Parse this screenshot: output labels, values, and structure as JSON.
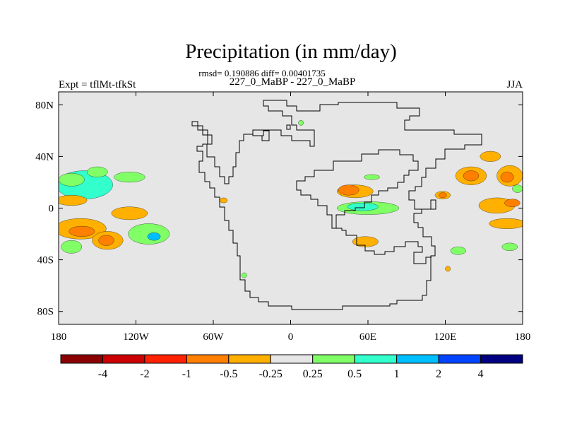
{
  "chart_data": {
    "type": "heatmap",
    "title": "Precipitation (in mm/day)",
    "stats": "rmsd= 0.190886 diff= 0.00401735",
    "subtitle": "227_0_MaBP - 227_0_MaBP",
    "left_label": "Expt = tflMt-tfkSt",
    "right_label": "JJA",
    "x_ticks": [
      {
        "value": -180,
        "label": "180"
      },
      {
        "value": -120,
        "label": "120W"
      },
      {
        "value": -60,
        "label": "60W"
      },
      {
        "value": 0,
        "label": "0"
      },
      {
        "value": 60,
        "label": "60E"
      },
      {
        "value": 120,
        "label": "120E"
      },
      {
        "value": 180,
        "label": "180"
      }
    ],
    "y_ticks": [
      {
        "value": 80,
        "label": "80N"
      },
      {
        "value": 40,
        "label": "40N"
      },
      {
        "value": 0,
        "label": "0"
      },
      {
        "value": -40,
        "label": "40S"
      },
      {
        "value": -80,
        "label": "80S"
      }
    ],
    "xlim": [
      -180,
      180
    ],
    "ylim": [
      -90,
      90
    ],
    "colorbar": {
      "colors": [
        "#8b0000",
        "#cc0000",
        "#ff2200",
        "#ff7f00",
        "#ffb000",
        "#e6e6e6",
        "#80ff66",
        "#33ffcc",
        "#00bfff",
        "#0044ff",
        "#000080"
      ],
      "labels": [
        "-4",
        "-2",
        "-1",
        "-0.5",
        "-0.25",
        "0.25",
        "0.5",
        "1",
        "2",
        "4"
      ]
    },
    "anomalies": [
      {
        "lon": -165,
        "lat": 16,
        "rx": 14,
        "ry": 7,
        "value": 1.5
      },
      {
        "lon": -160,
        "lat": 18,
        "rx": 22,
        "ry": 11,
        "value": 0.6
      },
      {
        "lon": -170,
        "lat": 22,
        "rx": 10,
        "ry": 5,
        "value": 0.3
      },
      {
        "lon": -150,
        "lat": 28,
        "rx": 8,
        "ry": 4,
        "value": 0.3
      },
      {
        "lon": -125,
        "lat": 24,
        "rx": 12,
        "ry": 4,
        "value": 0.3
      },
      {
        "lon": -170,
        "lat": 6,
        "rx": 12,
        "ry": 4,
        "value": -0.3
      },
      {
        "lon": -125,
        "lat": -4,
        "rx": 14,
        "ry": 5,
        "value": -0.3
      },
      {
        "lon": -163,
        "lat": -16,
        "rx": 20,
        "ry": 8,
        "value": -0.3
      },
      {
        "lon": -162,
        "lat": -18,
        "rx": 10,
        "ry": 4,
        "value": -0.6
      },
      {
        "lon": -142,
        "lat": -25,
        "rx": 12,
        "ry": 7,
        "value": -0.3
      },
      {
        "lon": -143,
        "lat": -25,
        "rx": 6,
        "ry": 4,
        "value": -0.6
      },
      {
        "lon": -110,
        "lat": -20,
        "rx": 16,
        "ry": 8,
        "value": 0.3
      },
      {
        "lon": -106,
        "lat": -22,
        "rx": 5,
        "ry": 3,
        "value": 1.0
      },
      {
        "lon": -170,
        "lat": -30,
        "rx": 8,
        "ry": 5,
        "value": 0.3
      },
      {
        "lon": 50,
        "lat": 13,
        "rx": 14,
        "ry": 5,
        "value": -0.3
      },
      {
        "lon": 45,
        "lat": 14,
        "rx": 8,
        "ry": 4,
        "value": -0.6
      },
      {
        "lon": 60,
        "lat": 0,
        "rx": 24,
        "ry": 5,
        "value": 0.3
      },
      {
        "lon": 56,
        "lat": 1,
        "rx": 12,
        "ry": 3,
        "value": 0.6
      },
      {
        "lon": 63,
        "lat": 24,
        "rx": 6,
        "ry": 2,
        "value": 0.3
      },
      {
        "lon": 58,
        "lat": -26,
        "rx": 10,
        "ry": 4,
        "value": -0.3
      },
      {
        "lon": 118,
        "lat": 10,
        "rx": 6,
        "ry": 3,
        "value": -0.3
      },
      {
        "lon": 118,
        "lat": 10,
        "rx": 3,
        "ry": 2,
        "value": -0.6
      },
      {
        "lon": 140,
        "lat": 25,
        "rx": 12,
        "ry": 7,
        "value": -0.3
      },
      {
        "lon": 140,
        "lat": 25,
        "rx": 6,
        "ry": 4,
        "value": -0.6
      },
      {
        "lon": 170,
        "lat": 25,
        "rx": 10,
        "ry": 8,
        "value": -0.3
      },
      {
        "lon": 168,
        "lat": 24,
        "rx": 5,
        "ry": 4,
        "value": -0.6
      },
      {
        "lon": 155,
        "lat": 40,
        "rx": 8,
        "ry": 4,
        "value": -0.3
      },
      {
        "lon": 160,
        "lat": 2,
        "rx": 14,
        "ry": 6,
        "value": -0.3
      },
      {
        "lon": 172,
        "lat": 4,
        "rx": 6,
        "ry": 3,
        "value": -0.6
      },
      {
        "lon": 168,
        "lat": -12,
        "rx": 14,
        "ry": 4,
        "value": -0.3
      },
      {
        "lon": 130,
        "lat": -33,
        "rx": 6,
        "ry": 3,
        "value": 0.3
      },
      {
        "lon": 170,
        "lat": -30,
        "rx": 6,
        "ry": 3,
        "value": 0.3
      },
      {
        "lon": 176,
        "lat": 15,
        "rx": 4,
        "ry": 3,
        "value": 0.3
      },
      {
        "lon": 122,
        "lat": -47,
        "rx": 2,
        "ry": 2,
        "value": -0.3
      },
      {
        "lon": -36,
        "lat": -52,
        "rx": 2,
        "ry": 2,
        "value": 0.3
      },
      {
        "lon": -52,
        "lat": 6,
        "rx": 3,
        "ry": 2,
        "value": -0.3
      },
      {
        "lon": 8,
        "lat": 66,
        "rx": 2,
        "ry": 2,
        "value": 0.3
      }
    ]
  }
}
